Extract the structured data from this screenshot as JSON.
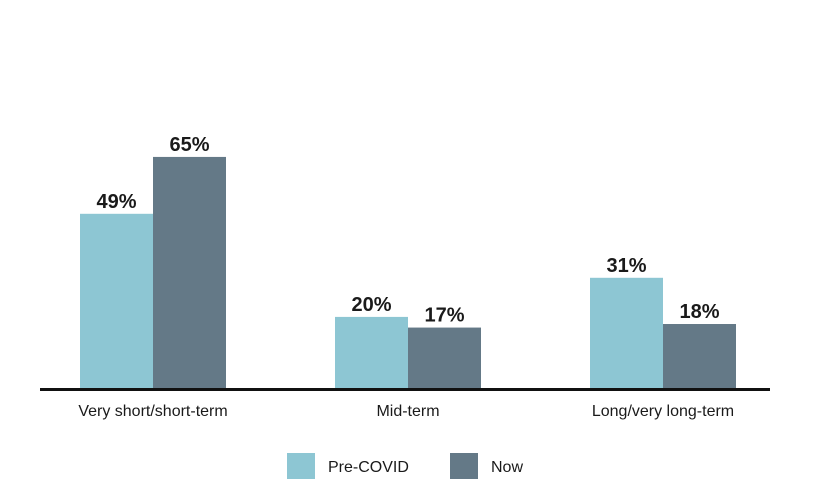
{
  "chart_data": {
    "type": "bar",
    "title": "",
    "xlabel": "",
    "ylabel": "",
    "categories": [
      "Very short/short-term",
      "Mid-term",
      "Long/very long-term"
    ],
    "series": [
      {
        "name": "Pre-COVID",
        "values": [
          49,
          20,
          31
        ],
        "labels": [
          "49%",
          "20%",
          "31%"
        ],
        "color": "#8dc6d3"
      },
      {
        "name": "Now",
        "values": [
          65,
          17,
          18
        ],
        "labels": [
          "65%",
          "17%",
          "18%"
        ],
        "color": "#647987"
      }
    ],
    "ylim": [
      0,
      100
    ],
    "grid": false,
    "legend_position": "bottom",
    "axis_color": "#111111"
  }
}
